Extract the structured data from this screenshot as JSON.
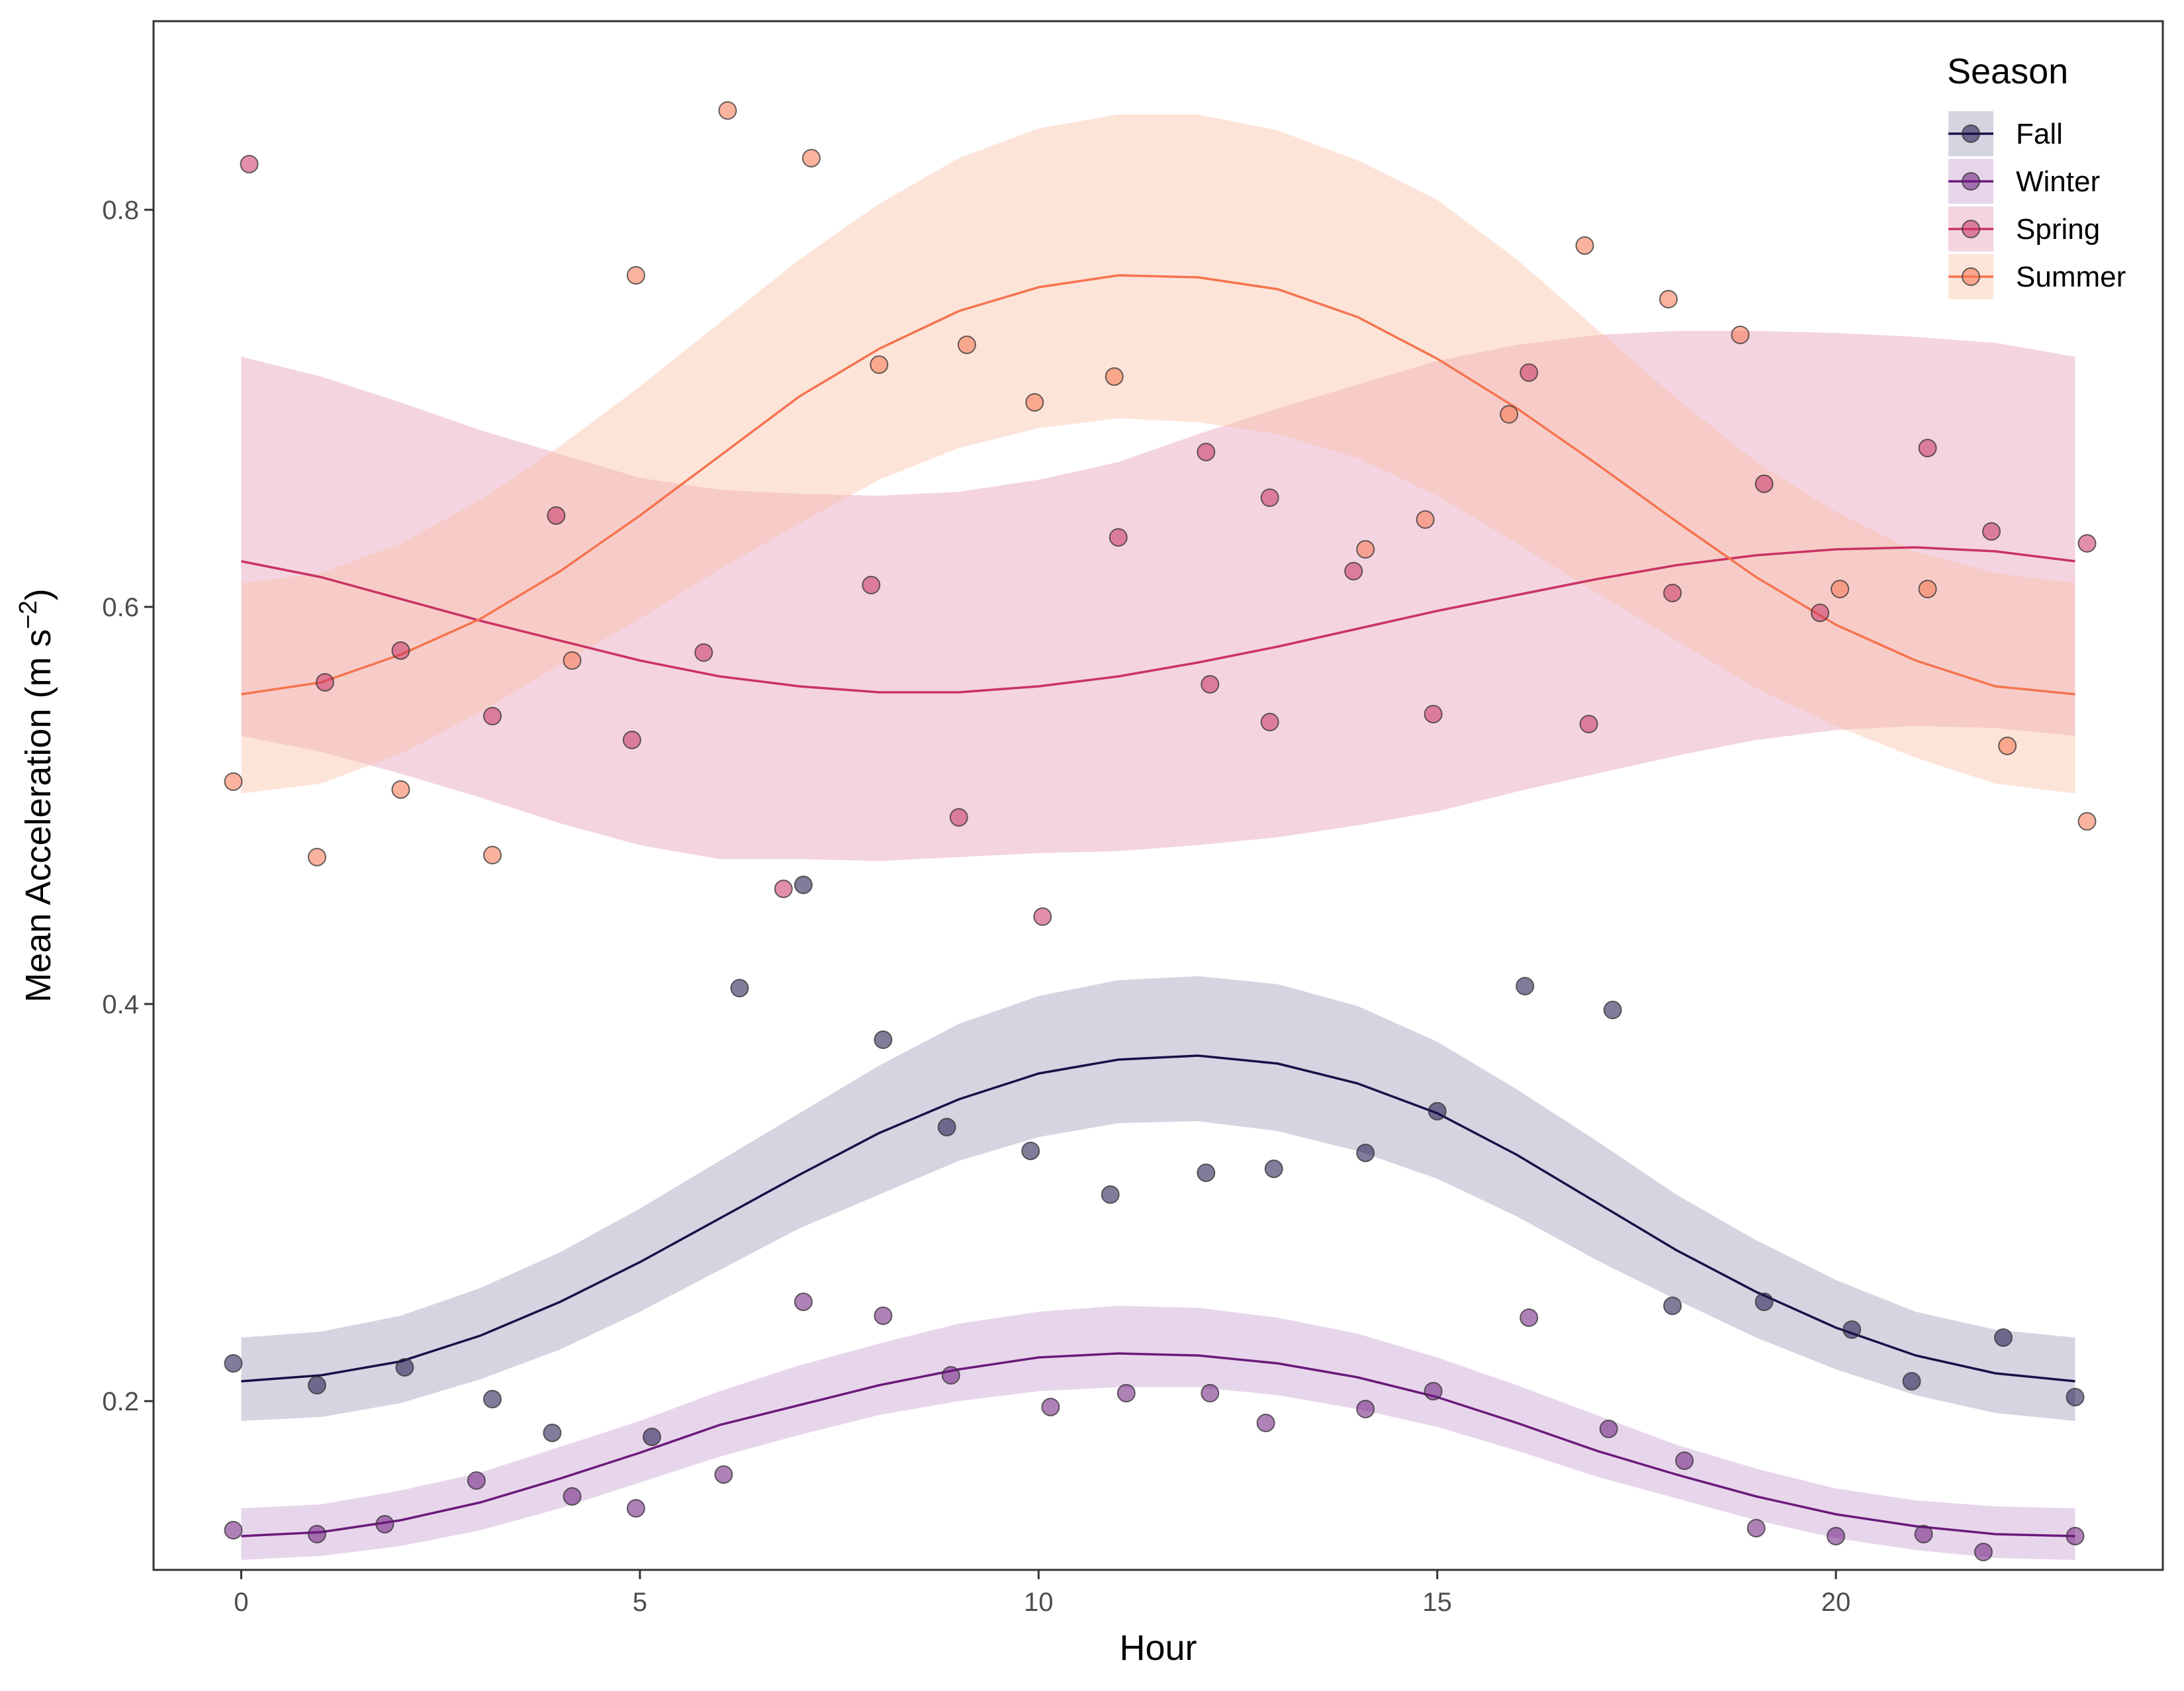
{
  "chart_data": {
    "type": "line",
    "title": "",
    "xlabel": "Hour",
    "ylabel_main": "Mean Acceleration (m s",
    "ylabel_sup": "−2",
    "ylabel_close": ")",
    "xlim": [
      -1.1,
      24.1
    ],
    "ylim": [
      0.115,
      0.895
    ],
    "x_ticks": [
      0,
      5,
      10,
      15,
      20
    ],
    "x_tick_labels": [
      "0",
      "5",
      "10",
      "15",
      "20"
    ],
    "y_ticks": [
      0.2,
      0.4,
      0.6,
      0.8
    ],
    "y_tick_labels": [
      "0.2",
      "0.4",
      "0.6",
      "0.8"
    ],
    "grid": false,
    "legend": {
      "title": "Season",
      "placement": "top-right"
    },
    "series": [
      {
        "name": "Fall",
        "color": "#1a1047",
        "fill_color": "#a3a0bd",
        "hours": [
          0,
          1,
          2,
          3,
          4,
          5,
          6,
          7,
          8,
          9,
          10,
          11,
          12,
          13,
          14,
          15,
          16,
          17,
          18,
          19,
          20,
          21,
          22,
          23
        ],
        "fit": [
          0.21,
          0.213,
          0.22,
          0.233,
          0.25,
          0.27,
          0.292,
          0.314,
          0.335,
          0.352,
          0.365,
          0.372,
          0.374,
          0.37,
          0.36,
          0.345,
          0.324,
          0.3,
          0.276,
          0.255,
          0.237,
          0.223,
          0.214,
          0.21
        ],
        "lower": [
          0.19,
          0.192,
          0.199,
          0.211,
          0.226,
          0.245,
          0.266,
          0.287,
          0.304,
          0.321,
          0.333,
          0.34,
          0.341,
          0.336,
          0.326,
          0.312,
          0.293,
          0.271,
          0.251,
          0.232,
          0.216,
          0.203,
          0.194,
          0.19
        ],
        "upper": [
          0.232,
          0.235,
          0.243,
          0.257,
          0.275,
          0.297,
          0.321,
          0.345,
          0.369,
          0.39,
          0.404,
          0.412,
          0.414,
          0.41,
          0.399,
          0.381,
          0.357,
          0.331,
          0.304,
          0.281,
          0.261,
          0.245,
          0.236,
          0.232
        ],
        "points": [
          [
            -0.1,
            0.219
          ],
          [
            0.95,
            0.208
          ],
          [
            2.05,
            0.217
          ],
          [
            3.15,
            0.201
          ],
          [
            3.9,
            0.184
          ],
          [
            5.15,
            0.182
          ],
          [
            6.25,
            0.408
          ],
          [
            7.05,
            0.46
          ],
          [
            8.05,
            0.382
          ],
          [
            8.85,
            0.338
          ],
          [
            9.9,
            0.326
          ],
          [
            10.9,
            0.304
          ],
          [
            12.1,
            0.315
          ],
          [
            12.95,
            0.317
          ],
          [
            14.1,
            0.325
          ],
          [
            15.0,
            0.346
          ],
          [
            16.1,
            0.409
          ],
          [
            17.2,
            0.397
          ],
          [
            17.95,
            0.248
          ],
          [
            19.1,
            0.25
          ],
          [
            20.2,
            0.236
          ],
          [
            20.95,
            0.21
          ],
          [
            22.1,
            0.232
          ],
          [
            23.0,
            0.202
          ]
        ]
      },
      {
        "name": "Winter",
        "color": "#6b1a7c",
        "fill_color": "#c9a3d2",
        "hours": [
          0,
          1,
          2,
          3,
          4,
          5,
          6,
          7,
          8,
          9,
          10,
          11,
          12,
          13,
          14,
          15,
          16,
          17,
          18,
          19,
          20,
          21,
          22,
          23
        ],
        "fit": [
          0.132,
          0.134,
          0.14,
          0.149,
          0.161,
          0.174,
          0.188,
          0.198,
          0.208,
          0.216,
          0.222,
          0.224,
          0.223,
          0.219,
          0.212,
          0.202,
          0.189,
          0.175,
          0.163,
          0.152,
          0.143,
          0.137,
          0.133,
          0.132
        ],
        "lower": [
          0.12,
          0.122,
          0.127,
          0.135,
          0.146,
          0.159,
          0.172,
          0.183,
          0.193,
          0.2,
          0.205,
          0.207,
          0.207,
          0.203,
          0.196,
          0.187,
          0.175,
          0.162,
          0.151,
          0.14,
          0.131,
          0.125,
          0.121,
          0.12
        ],
        "upper": [
          0.146,
          0.148,
          0.155,
          0.164,
          0.177,
          0.19,
          0.205,
          0.218,
          0.229,
          0.239,
          0.245,
          0.248,
          0.247,
          0.242,
          0.234,
          0.222,
          0.208,
          0.193,
          0.178,
          0.166,
          0.156,
          0.15,
          0.147,
          0.146
        ],
        "points": [
          [
            -0.1,
            0.135
          ],
          [
            0.95,
            0.133
          ],
          [
            1.8,
            0.138
          ],
          [
            2.95,
            0.16
          ],
          [
            4.15,
            0.152
          ],
          [
            4.95,
            0.146
          ],
          [
            6.05,
            0.163
          ],
          [
            7.05,
            0.25
          ],
          [
            8.05,
            0.243
          ],
          [
            8.9,
            0.213
          ],
          [
            10.15,
            0.197
          ],
          [
            11.1,
            0.204
          ],
          [
            12.15,
            0.204
          ],
          [
            12.85,
            0.189
          ],
          [
            14.1,
            0.196
          ],
          [
            14.95,
            0.205
          ],
          [
            16.15,
            0.242
          ],
          [
            17.15,
            0.186
          ],
          [
            18.1,
            0.17
          ],
          [
            19.0,
            0.136
          ],
          [
            20.0,
            0.132
          ],
          [
            21.1,
            0.133
          ],
          [
            21.85,
            0.124
          ],
          [
            23.0,
            0.132
          ]
        ]
      },
      {
        "name": "Spring",
        "color": "#c93365",
        "fill_color": "#e6a0bd",
        "hours": [
          0,
          1,
          2,
          3,
          4,
          5,
          6,
          7,
          8,
          9,
          10,
          11,
          12,
          13,
          14,
          15,
          16,
          17,
          18,
          19,
          20,
          21,
          22,
          23
        ],
        "fit": [
          0.623,
          0.615,
          0.604,
          0.593,
          0.583,
          0.573,
          0.565,
          0.56,
          0.557,
          0.557,
          0.56,
          0.565,
          0.572,
          0.58,
          0.589,
          0.598,
          0.606,
          0.614,
          0.621,
          0.626,
          0.629,
          0.63,
          0.628,
          0.623
        ],
        "lower": [
          0.535,
          0.527,
          0.516,
          0.504,
          0.491,
          0.48,
          0.473,
          0.473,
          0.472,
          0.474,
          0.476,
          0.477,
          0.48,
          0.484,
          0.49,
          0.497,
          0.507,
          0.516,
          0.525,
          0.533,
          0.538,
          0.54,
          0.539,
          0.535
        ],
        "upper": [
          0.726,
          0.716,
          0.703,
          0.689,
          0.677,
          0.665,
          0.659,
          0.657,
          0.656,
          0.658,
          0.664,
          0.673,
          0.687,
          0.7,
          0.712,
          0.724,
          0.732,
          0.737,
          0.739,
          0.739,
          0.738,
          0.736,
          0.733,
          0.726
        ],
        "points": [
          [
            0.1,
            0.823
          ],
          [
            1.05,
            0.562
          ],
          [
            2.0,
            0.578
          ],
          [
            3.15,
            0.545
          ],
          [
            3.95,
            0.646
          ],
          [
            4.9,
            0.533
          ],
          [
            5.8,
            0.577
          ],
          [
            6.8,
            0.458
          ],
          [
            7.9,
            0.611
          ],
          [
            9.0,
            0.494
          ],
          [
            10.05,
            0.444
          ],
          [
            11.0,
            0.635
          ],
          [
            12.15,
            0.561
          ],
          [
            12.1,
            0.678
          ],
          [
            12.9,
            0.655
          ],
          [
            12.9,
            0.542
          ],
          [
            13.95,
            0.618
          ],
          [
            14.95,
            0.546
          ],
          [
            16.15,
            0.718
          ],
          [
            16.9,
            0.541
          ],
          [
            17.95,
            0.607
          ],
          [
            19.1,
            0.662
          ],
          [
            19.8,
            0.597
          ],
          [
            21.15,
            0.68
          ],
          [
            21.95,
            0.638
          ],
          [
            23.15,
            0.632
          ]
        ]
      },
      {
        "name": "Summer",
        "color": "#f5744f",
        "fill_color": "#fbc4aa",
        "hours": [
          0,
          1,
          2,
          3,
          4,
          5,
          6,
          7,
          8,
          9,
          10,
          11,
          12,
          13,
          14,
          15,
          16,
          17,
          18,
          19,
          20,
          21,
          22,
          23
        ],
        "fit": [
          0.556,
          0.562,
          0.576,
          0.594,
          0.618,
          0.646,
          0.676,
          0.706,
          0.73,
          0.749,
          0.761,
          0.767,
          0.766,
          0.76,
          0.746,
          0.725,
          0.7,
          0.672,
          0.643,
          0.615,
          0.591,
          0.573,
          0.56,
          0.556
        ],
        "lower": [
          0.506,
          0.511,
          0.526,
          0.547,
          0.571,
          0.594,
          0.619,
          0.642,
          0.664,
          0.68,
          0.69,
          0.695,
          0.693,
          0.687,
          0.675,
          0.656,
          0.632,
          0.607,
          0.583,
          0.559,
          0.54,
          0.524,
          0.511,
          0.506
        ],
        "upper": [
          0.612,
          0.617,
          0.632,
          0.654,
          0.681,
          0.711,
          0.743,
          0.775,
          0.803,
          0.826,
          0.841,
          0.848,
          0.848,
          0.84,
          0.825,
          0.805,
          0.775,
          0.74,
          0.705,
          0.673,
          0.648,
          0.628,
          0.617,
          0.612
        ],
        "points": [
          [
            -0.1,
            0.512
          ],
          [
            0.95,
            0.474
          ],
          [
            2.0,
            0.508
          ],
          [
            3.15,
            0.475
          ],
          [
            4.15,
            0.573
          ],
          [
            4.95,
            0.767
          ],
          [
            6.1,
            0.85
          ],
          [
            7.15,
            0.826
          ],
          [
            8.0,
            0.722
          ],
          [
            9.1,
            0.732
          ],
          [
            9.95,
            0.703
          ],
          [
            10.95,
            0.716
          ],
          [
            14.1,
            0.629
          ],
          [
            14.85,
            0.644
          ],
          [
            15.9,
            0.697
          ],
          [
            16.85,
            0.782
          ],
          [
            17.9,
            0.755
          ],
          [
            18.8,
            0.737
          ],
          [
            20.05,
            0.609
          ],
          [
            21.15,
            0.609
          ],
          [
            22.15,
            0.53
          ],
          [
            23.15,
            0.492
          ]
        ]
      }
    ]
  }
}
